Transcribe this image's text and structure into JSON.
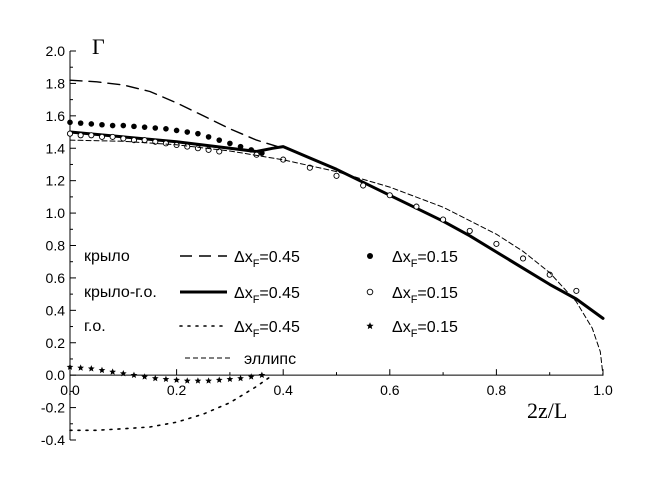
{
  "chart_data": {
    "type": "line",
    "title": "",
    "xlabel": "2z/L",
    "ylabel": "Γ",
    "xlim": [
      0.0,
      1.0
    ],
    "ylim": [
      -0.4,
      2.0
    ],
    "xticks": [
      0.0,
      0.2,
      0.4,
      0.6,
      0.8,
      1.0
    ],
    "yticks": [
      -0.4,
      -0.2,
      0.0,
      0.2,
      0.4,
      0.6,
      0.8,
      1.0,
      1.2,
      1.4,
      1.6,
      1.8,
      2.0
    ],
    "xtick_labels": [
      "0.0",
      "0.2",
      "0.4",
      "0.6",
      "0.8",
      "1.0"
    ],
    "ytick_labels": [
      "-0.4",
      "-0.2",
      "0.0",
      "0.2",
      "0.4",
      "0.6",
      "0.8",
      "1.0",
      "1.2",
      "1.4",
      "1.6",
      "1.8",
      "2.0"
    ],
    "grid": false,
    "legend_placement": "center-left",
    "legend": [
      {
        "group": "крыло",
        "entries": [
          {
            "series": "wing_045",
            "marker": "dashed-line",
            "label_prefix": "Δx",
            "label_sub": "F",
            "label_suffix": "=0.45"
          },
          {
            "series": "wing_015",
            "marker": "filled-dot",
            "label_prefix": "Δx",
            "label_sub": "F",
            "label_suffix": "=0.15"
          }
        ]
      },
      {
        "group": "крыло-г.о.",
        "entries": [
          {
            "series": "wingtail_045",
            "marker": "thick-line",
            "label_prefix": "Δx",
            "label_sub": "F",
            "label_suffix": "=0.45"
          },
          {
            "series": "wingtail_015",
            "marker": "open-circle",
            "label_prefix": "Δx",
            "label_sub": "F",
            "label_suffix": "=0.15"
          }
        ]
      },
      {
        "group": "г.о.",
        "entries": [
          {
            "series": "tail_045",
            "marker": "dotted-line",
            "label_prefix": "Δx",
            "label_sub": "F",
            "label_suffix": "=0.45"
          },
          {
            "series": "tail_015",
            "marker": "star",
            "label_prefix": "Δx",
            "label_sub": "F",
            "label_suffix": "=0.15"
          }
        ]
      },
      {
        "group": "",
        "entries": [
          {
            "series": "ellipse",
            "marker": "short-dashed-line",
            "label_prefix": "эллипс",
            "label_sub": "",
            "label_suffix": ""
          }
        ]
      }
    ],
    "series": [
      {
        "id": "wing_045",
        "style": "dashed",
        "x": [
          0.0,
          0.05,
          0.1,
          0.15,
          0.2,
          0.25,
          0.3,
          0.35,
          0.4
        ],
        "y": [
          1.82,
          1.81,
          1.79,
          1.75,
          1.68,
          1.6,
          1.52,
          1.45,
          1.4
        ]
      },
      {
        "id": "wing_015",
        "style": "filled-dot",
        "x": [
          0.0,
          0.02,
          0.04,
          0.06,
          0.08,
          0.1,
          0.12,
          0.14,
          0.16,
          0.18,
          0.2,
          0.22,
          0.24,
          0.26,
          0.28,
          0.3,
          0.32,
          0.34,
          0.36
        ],
        "y": [
          1.56,
          1.555,
          1.55,
          1.545,
          1.54,
          1.54,
          1.535,
          1.53,
          1.525,
          1.52,
          1.51,
          1.5,
          1.49,
          1.47,
          1.45,
          1.43,
          1.41,
          1.39,
          1.37
        ]
      },
      {
        "id": "wingtail_045",
        "style": "thick",
        "x": [
          0.0,
          0.1,
          0.2,
          0.3,
          0.35,
          0.38,
          0.4,
          0.45,
          0.5,
          0.55,
          0.6,
          0.65,
          0.7,
          0.75,
          0.8,
          0.85,
          0.9,
          0.95,
          1.0
        ],
        "y": [
          1.5,
          1.47,
          1.44,
          1.4,
          1.38,
          1.4,
          1.41,
          1.34,
          1.27,
          1.19,
          1.11,
          1.03,
          0.95,
          0.86,
          0.76,
          0.66,
          0.56,
          0.47,
          0.35
        ]
      },
      {
        "id": "wingtail_015",
        "style": "open-circle",
        "x": [
          0.0,
          0.02,
          0.04,
          0.06,
          0.08,
          0.1,
          0.12,
          0.14,
          0.16,
          0.18,
          0.2,
          0.22,
          0.24,
          0.26,
          0.28,
          0.35,
          0.4,
          0.45,
          0.5,
          0.55,
          0.6,
          0.65,
          0.7,
          0.75,
          0.8,
          0.85,
          0.9,
          0.95
        ],
        "y": [
          1.49,
          1.48,
          1.48,
          1.47,
          1.47,
          1.46,
          1.45,
          1.45,
          1.44,
          1.43,
          1.42,
          1.41,
          1.4,
          1.39,
          1.38,
          1.36,
          1.33,
          1.28,
          1.23,
          1.17,
          1.11,
          1.04,
          0.96,
          0.89,
          0.81,
          0.72,
          0.62,
          0.52
        ]
      },
      {
        "id": "tail_045",
        "style": "dotted",
        "x": [
          0.0,
          0.05,
          0.1,
          0.15,
          0.2,
          0.25,
          0.3,
          0.35,
          0.38
        ],
        "y": [
          -0.34,
          -0.34,
          -0.33,
          -0.32,
          -0.29,
          -0.24,
          -0.17,
          -0.07,
          0.0
        ]
      },
      {
        "id": "tail_015",
        "style": "star",
        "x": [
          0.0,
          0.02,
          0.04,
          0.06,
          0.08,
          0.1,
          0.12,
          0.14,
          0.16,
          0.18,
          0.2,
          0.22,
          0.24,
          0.26,
          0.28,
          0.3,
          0.32,
          0.34,
          0.36
        ],
        "y": [
          0.05,
          0.045,
          0.04,
          0.03,
          0.02,
          0.01,
          0.0,
          -0.01,
          -0.02,
          -0.025,
          -0.03,
          -0.035,
          -0.035,
          -0.035,
          -0.03,
          -0.025,
          -0.02,
          -0.01,
          0.0
        ]
      },
      {
        "id": "ellipse",
        "style": "short-dashed",
        "x": [
          0.0,
          0.1,
          0.2,
          0.3,
          0.4,
          0.5,
          0.6,
          0.7,
          0.8,
          0.85,
          0.9,
          0.95,
          0.98,
          0.995,
          1.0
        ],
        "y": [
          1.45,
          1.443,
          1.421,
          1.383,
          1.329,
          1.256,
          1.16,
          1.036,
          0.87,
          0.764,
          0.632,
          0.453,
          0.289,
          0.145,
          0.0
        ]
      }
    ]
  }
}
